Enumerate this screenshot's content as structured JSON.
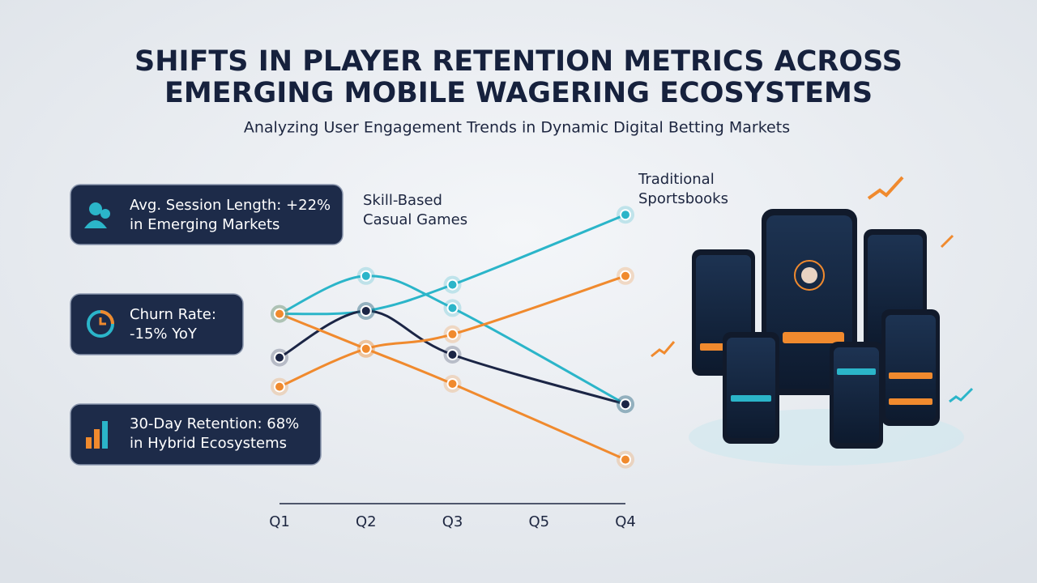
{
  "chart_data": {
    "type": "line",
    "title": [
      "SHIFTS IN PLAYER RETENTION METRICS ACROSS",
      "EMERGING MOBILE WAGERING ECOSYSTEMS"
    ],
    "subtitle": "Analyzing User Engagement Trends in Dynamic Digital Betting Markets",
    "annotations": [
      [
        "Skill-Based",
        "Casual Games"
      ],
      [
        "Traditional",
        "Sportsbooks"
      ]
    ],
    "xlim": [
      1,
      5
    ],
    "xticks": [
      {
        "value": 1,
        "label": "Q1"
      },
      {
        "value": 2,
        "label": "Q2"
      },
      {
        "value": 3,
        "label": "Q3"
      },
      {
        "value": 4,
        "label": "Q5"
      },
      {
        "value": 5,
        "label": "Q4"
      }
    ],
    "ylim": [
      0,
      100
    ],
    "series": [
      {
        "color": "#2bb5c9",
        "x": [
          1,
          2,
          3,
          5
        ],
        "values": [
          59,
          60,
          69,
          93
        ]
      },
      {
        "color": "#2bb5c9",
        "x": [
          1,
          2,
          3,
          5
        ],
        "values": [
          59,
          72,
          61,
          28
        ]
      },
      {
        "color": "#1b2545",
        "x": [
          1,
          2,
          3,
          5
        ],
        "values": [
          44,
          60,
          45,
          28
        ]
      },
      {
        "color": "#f08a2e",
        "x": [
          1,
          2,
          3,
          5
        ],
        "values": [
          34,
          47,
          52,
          72
        ]
      },
      {
        "color": "#f08a2e",
        "x": [
          1,
          2,
          3,
          5
        ],
        "values": [
          59,
          47,
          35,
          9
        ]
      }
    ]
  },
  "cards": [
    [
      "Avg. Session Length: +22%",
      "in Emerging Markets"
    ],
    [
      "Churn Rate:",
      "-15% YoY"
    ],
    [
      "30-Day Retention: 68%",
      "in Hybrid Ecosystems"
    ]
  ]
}
